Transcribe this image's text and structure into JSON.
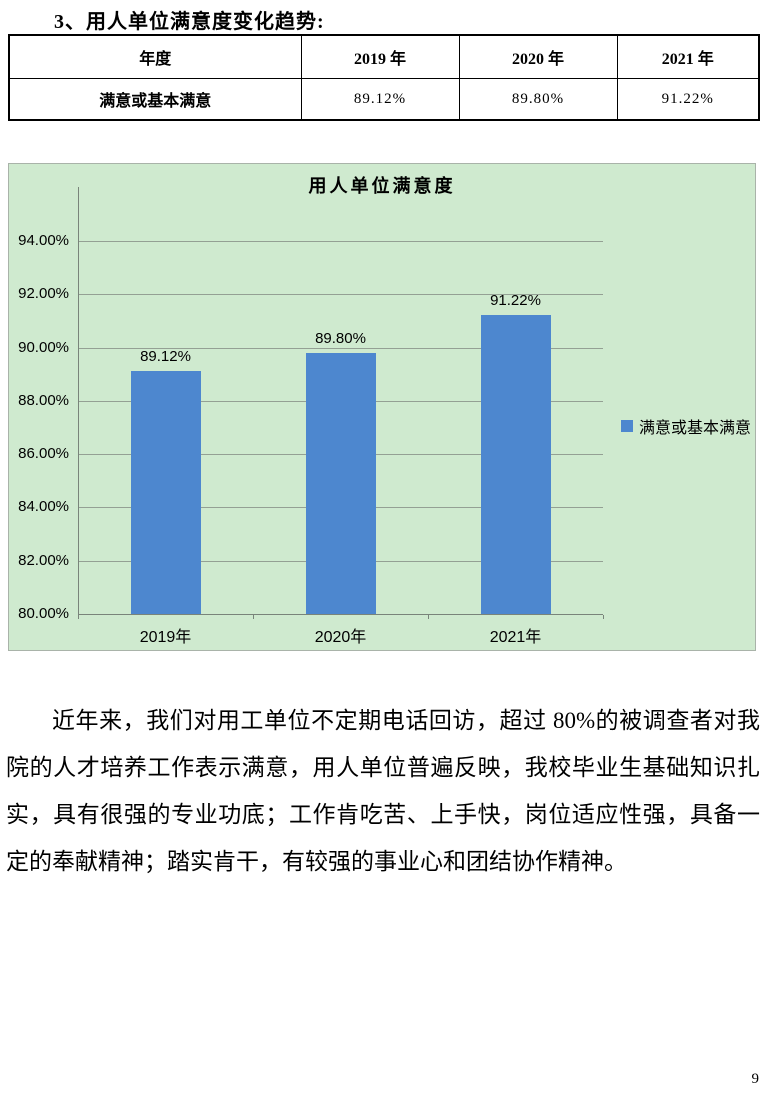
{
  "page_number": "9",
  "heading": "3、用人单位满意度变化趋势:",
  "table": {
    "columns": [
      "年度",
      "2019 年",
      "2020 年",
      "2021 年"
    ],
    "row_label": "满意或基本满意",
    "values": [
      "89.12%",
      "89.80%",
      "91.22%"
    ]
  },
  "chart_data": {
    "type": "bar",
    "title": "用人单位满意度",
    "categories": [
      "2019年",
      "2020年",
      "2021年"
    ],
    "series": [
      {
        "name": "满意或基本满意",
        "values": [
          89.12,
          89.8,
          91.22
        ]
      }
    ],
    "data_labels": [
      "89.12%",
      "89.80%",
      "91.22%"
    ],
    "xlabel": "",
    "ylabel": "",
    "ylim": [
      80,
      94
    ],
    "ytick_step": 2,
    "ytick_suffix": "%",
    "grid": true,
    "legend_position": "right",
    "colors": {
      "bar": "#4d87cf",
      "plot_background": "#cfeacf",
      "gridline": "#94a094",
      "axis": "#79847a",
      "border": "#a9b3a9"
    }
  },
  "paragraph": {
    "lines": [
      "近年来，我们对用工单位不定期电话回访，超过 80%的被调查者对我",
      "院的人才培养工作表示满意，用人单位普遍反映，我校毕业生基础知识扎",
      "实，具有很强的专业功底；工作肯吃苦、上手快，岗位适应性强，具备一",
      "定的奉献精神；踏实肯干，有较强的事业心和团结协作精神。"
    ]
  }
}
